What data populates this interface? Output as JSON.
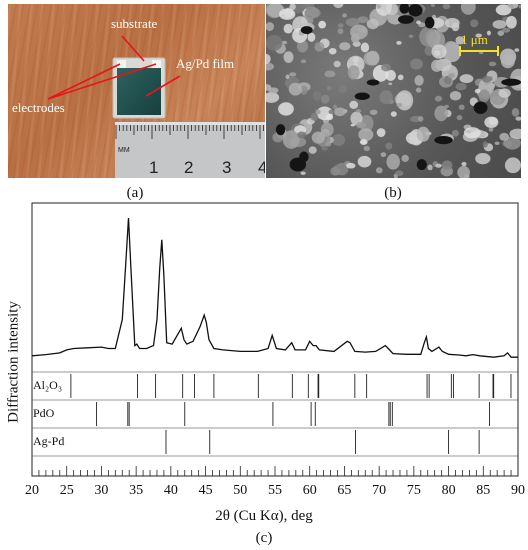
{
  "panel_a": {
    "labels": {
      "substrate": "substrate",
      "film": "Ag/Pd film",
      "electrodes": "electrodes"
    },
    "ruler": {
      "unit": "MM",
      "numbers": [
        "1",
        "2",
        "3",
        "4"
      ]
    },
    "caption": "(a)"
  },
  "panel_b": {
    "scalebar": "1 μm",
    "caption": "(b)"
  },
  "panel_c": {
    "caption": "(c)",
    "ylabel": "Diffraction intensity",
    "xlabel": "2θ (Cu Kα), deg",
    "phase_labels": [
      "Al₂O₃",
      "PdO",
      "Ag-Pd"
    ]
  },
  "chart_data": {
    "type": "line",
    "xlim": [
      20,
      90
    ],
    "x_ticks": [
      20,
      25,
      30,
      35,
      40,
      45,
      50,
      55,
      60,
      65,
      70,
      75,
      80,
      85,
      90
    ],
    "y_ticks": [],
    "grid": false,
    "series": [
      {
        "x": [
          20,
          22,
          24,
          25,
          26,
          28,
          30,
          31,
          32,
          33,
          33.5,
          33.9,
          34.3,
          34.8,
          35.1,
          35.5,
          36.5,
          37.5,
          38,
          38.4,
          38.7,
          39.0,
          39.4,
          40.2,
          41.5,
          41.9,
          42.3,
          43.2,
          44.2,
          44.8,
          45.1,
          45.5,
          46.2,
          47.5,
          50,
          52.5,
          54,
          54.6,
          55.2,
          56.5,
          57.4,
          57.9,
          59.4,
          60.0,
          60.5,
          60.9,
          61.4,
          63.5,
          65.4,
          65.8,
          66.5,
          68,
          69.5,
          70.9,
          71.3,
          72,
          74,
          76,
          76.5,
          76.8,
          77.1,
          77.6,
          78.6,
          79.1,
          80,
          81.5,
          82.5,
          83.5,
          84.5,
          86.5,
          88,
          88.5,
          89,
          90
        ],
        "y": [
          5,
          5.8,
          7,
          9,
          10,
          10.5,
          11,
          10,
          10,
          30,
          68,
          100,
          60,
          12,
          13,
          10,
          10,
          12,
          30,
          65,
          85,
          60,
          14,
          13,
          24,
          16,
          13,
          15,
          25,
          33,
          28,
          16,
          10,
          9,
          8,
          8,
          10,
          19,
          10,
          9,
          14,
          9,
          9,
          15,
          12,
          12,
          9,
          8,
          15,
          14,
          8,
          7.5,
          8,
          12,
          10,
          6.5,
          6,
          6,
          14,
          18,
          10,
          8,
          11,
          8,
          6,
          5.5,
          5,
          5.8,
          5,
          4,
          5,
          7,
          4,
          4
        ]
      }
    ],
    "reference_lines": {
      "Al2O3": [
        25.6,
        35.2,
        37.8,
        41.7,
        43.4,
        46.2,
        52.6,
        57.5,
        59.8,
        61.2,
        61.3,
        66.5,
        68.2,
        76.9,
        77.2,
        80.4,
        80.7,
        84.4,
        86.4,
        86.5,
        88.99
      ],
      "PdO": [
        29.3,
        33.8,
        34.0,
        42.0,
        54.7,
        60.2,
        60.8,
        71.4,
        71.6,
        71.9,
        85.9
      ],
      "Ag-Pd": [
        39.3,
        45.6,
        66.6,
        80.0,
        84.4
      ]
    }
  }
}
